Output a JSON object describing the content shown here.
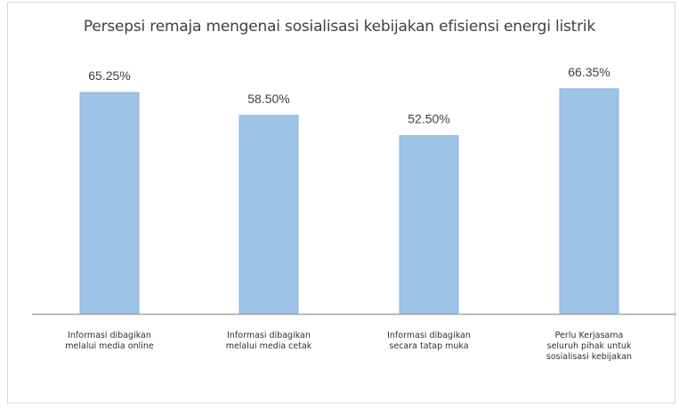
{
  "chart_data": {
    "type": "bar",
    "title": "Persepsi remaja mengenai sosialisasi kebijakan efisiensi energi listrik",
    "categories": [
      [
        "Informasi dibagikan",
        "melalui media online"
      ],
      [
        "Informasi dibagikan",
        "melalui media cetak"
      ],
      [
        "Informasi dibagikan",
        "secara tatap muka"
      ],
      [
        "Perlu Kerjasama",
        "seluruh pihak untuk",
        "sosialisasi kebijakan"
      ]
    ],
    "values": [
      65.25,
      58.5,
      52.5,
      66.35
    ],
    "data_labels": [
      "65.25%",
      "58.50%",
      "52.50%",
      "66.35%"
    ],
    "ylim": [
      0,
      70
    ],
    "grid": false,
    "legend": "none",
    "colors": {
      "bar_fill": "#9dc3e6",
      "bar_stroke": "#8db4dc",
      "axis": "#a6a6a6"
    }
  }
}
